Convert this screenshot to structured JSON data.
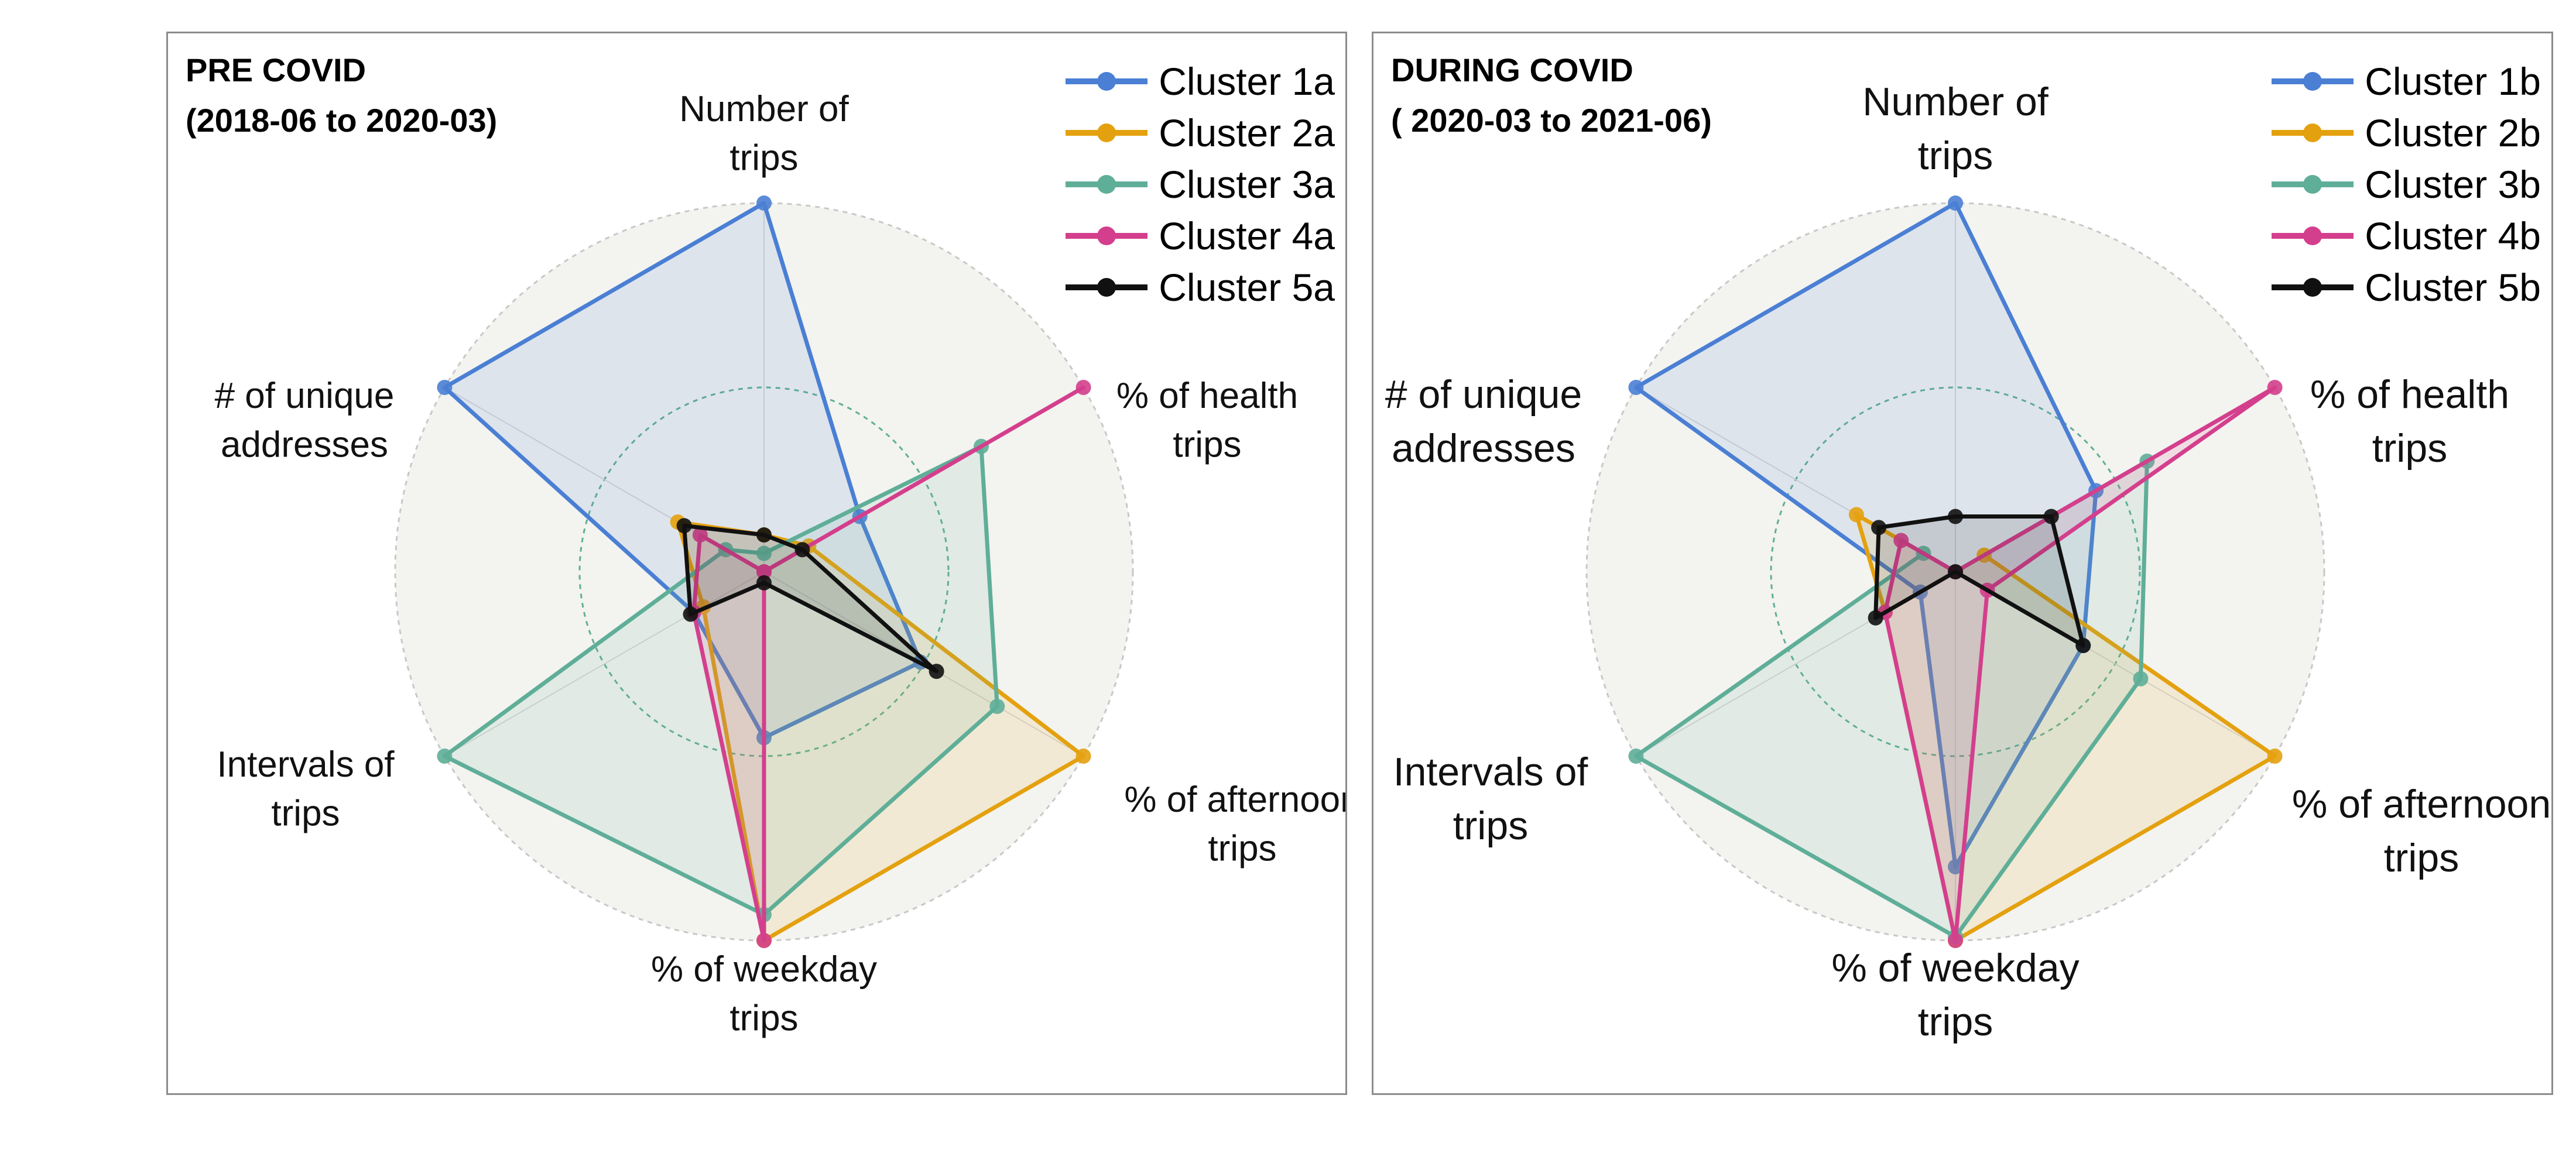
{
  "colors": {
    "cluster1": "#4a7fd4",
    "cluster2": "#e4a10f",
    "cluster3": "#5fae98",
    "cluster4": "#d43f8d",
    "cluster5": "#111111",
    "background_disc": "#f3f3f0",
    "grid_circle": "#5fae98"
  },
  "chart_data": [
    {
      "type": "radar",
      "title": [
        "PRE COVID",
        "(2018-06 to 2020-03)"
      ],
      "axes": [
        [
          "Number of",
          "trips"
        ],
        [
          "% of health",
          "trips"
        ],
        [
          "% of afternoon",
          "trips"
        ],
        [
          "% of weekday",
          "trips"
        ],
        [
          "Intervals of",
          "trips"
        ],
        [
          "# of unique",
          "addresses"
        ]
      ],
      "range": [
        0,
        1
      ],
      "grid_levels": [
        0.5,
        1.0
      ],
      "legend_position": "top-right",
      "series": [
        {
          "name": "Cluster 1a",
          "color_key": "cluster1",
          "values": [
            1.0,
            0.3,
            0.49,
            0.45,
            0.22,
            1.0
          ]
        },
        {
          "name": "Cluster 2a",
          "color_key": "cluster2",
          "values": [
            0.1,
            0.14,
            1.0,
            1.0,
            0.19,
            0.27
          ]
        },
        {
          "name": "Cluster 3a",
          "color_key": "cluster3",
          "values": [
            0.05,
            0.68,
            0.73,
            0.93,
            1.0,
            0.12
          ]
        },
        {
          "name": "Cluster 4a",
          "color_key": "cluster4",
          "values": [
            0.0,
            1.0,
            0.0,
            1.0,
            0.22,
            0.2
          ]
        },
        {
          "name": "Cluster 5a",
          "color_key": "cluster5",
          "values": [
            0.1,
            0.12,
            0.54,
            0.03,
            0.23,
            0.25
          ]
        }
      ]
    },
    {
      "type": "radar",
      "title": [
        "DURING COVID",
        "( 2020-03 to 2021-06)"
      ],
      "axes": [
        [
          "Number of",
          "trips"
        ],
        [
          "% of health",
          "trips"
        ],
        [
          "% of afternoon",
          "trips"
        ],
        [
          "% of weekday",
          "trips"
        ],
        [
          "Intervals of",
          "trips"
        ],
        [
          "# of unique",
          "addresses"
        ]
      ],
      "range": [
        0,
        1
      ],
      "grid_levels": [
        0.5,
        1.0
      ],
      "legend_position": "top-right",
      "series": [
        {
          "name": "Cluster 1b",
          "color_key": "cluster1",
          "values": [
            1.0,
            0.44,
            0.4,
            0.8,
            0.11,
            1.0
          ]
        },
        {
          "name": "Cluster 2b",
          "color_key": "cluster2",
          "values": [
            0.0,
            0.09,
            1.0,
            1.0,
            0.22,
            0.31
          ]
        },
        {
          "name": "Cluster 3b",
          "color_key": "cluster3",
          "values": [
            0.0,
            0.6,
            0.58,
            0.99,
            1.0,
            0.1
          ]
        },
        {
          "name": "Cluster 4b",
          "color_key": "cluster4",
          "values": [
            0.0,
            1.0,
            0.1,
            1.0,
            0.22,
            0.17
          ]
        },
        {
          "name": "Cluster 5b",
          "color_key": "cluster5",
          "values": [
            0.15,
            0.3,
            0.4,
            0.0,
            0.25,
            0.24
          ]
        }
      ]
    }
  ]
}
